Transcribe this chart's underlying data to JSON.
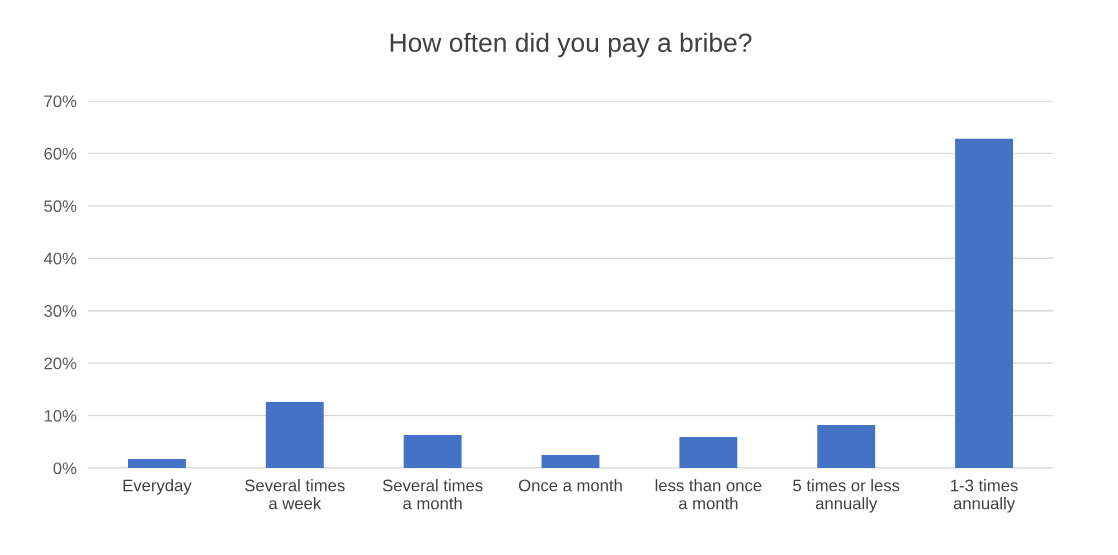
{
  "chart_data": {
    "type": "bar",
    "title": "How often did you pay a bribe?",
    "categories": [
      "Everyday",
      "Several times\na week",
      "Several times\na month",
      "Once a month",
      "less than once\na month",
      "5 times or less\nannually",
      "1-3 times\nannually"
    ],
    "values": [
      1.7,
      12.6,
      6.3,
      2.5,
      5.9,
      8.2,
      62.8
    ],
    "color": "#4472c4",
    "ylim": [
      0,
      70
    ],
    "yticks": [
      {
        "value": 0,
        "label": "0%"
      },
      {
        "value": 10,
        "label": "10%"
      },
      {
        "value": 20,
        "label": "20%"
      },
      {
        "value": 30,
        "label": "30%"
      },
      {
        "value": 40,
        "label": "40%"
      },
      {
        "value": 50,
        "label": "50%"
      },
      {
        "value": 60,
        "label": "60%"
      },
      {
        "value": 70,
        "label": "70%"
      }
    ],
    "grid": "y",
    "legend": false
  }
}
